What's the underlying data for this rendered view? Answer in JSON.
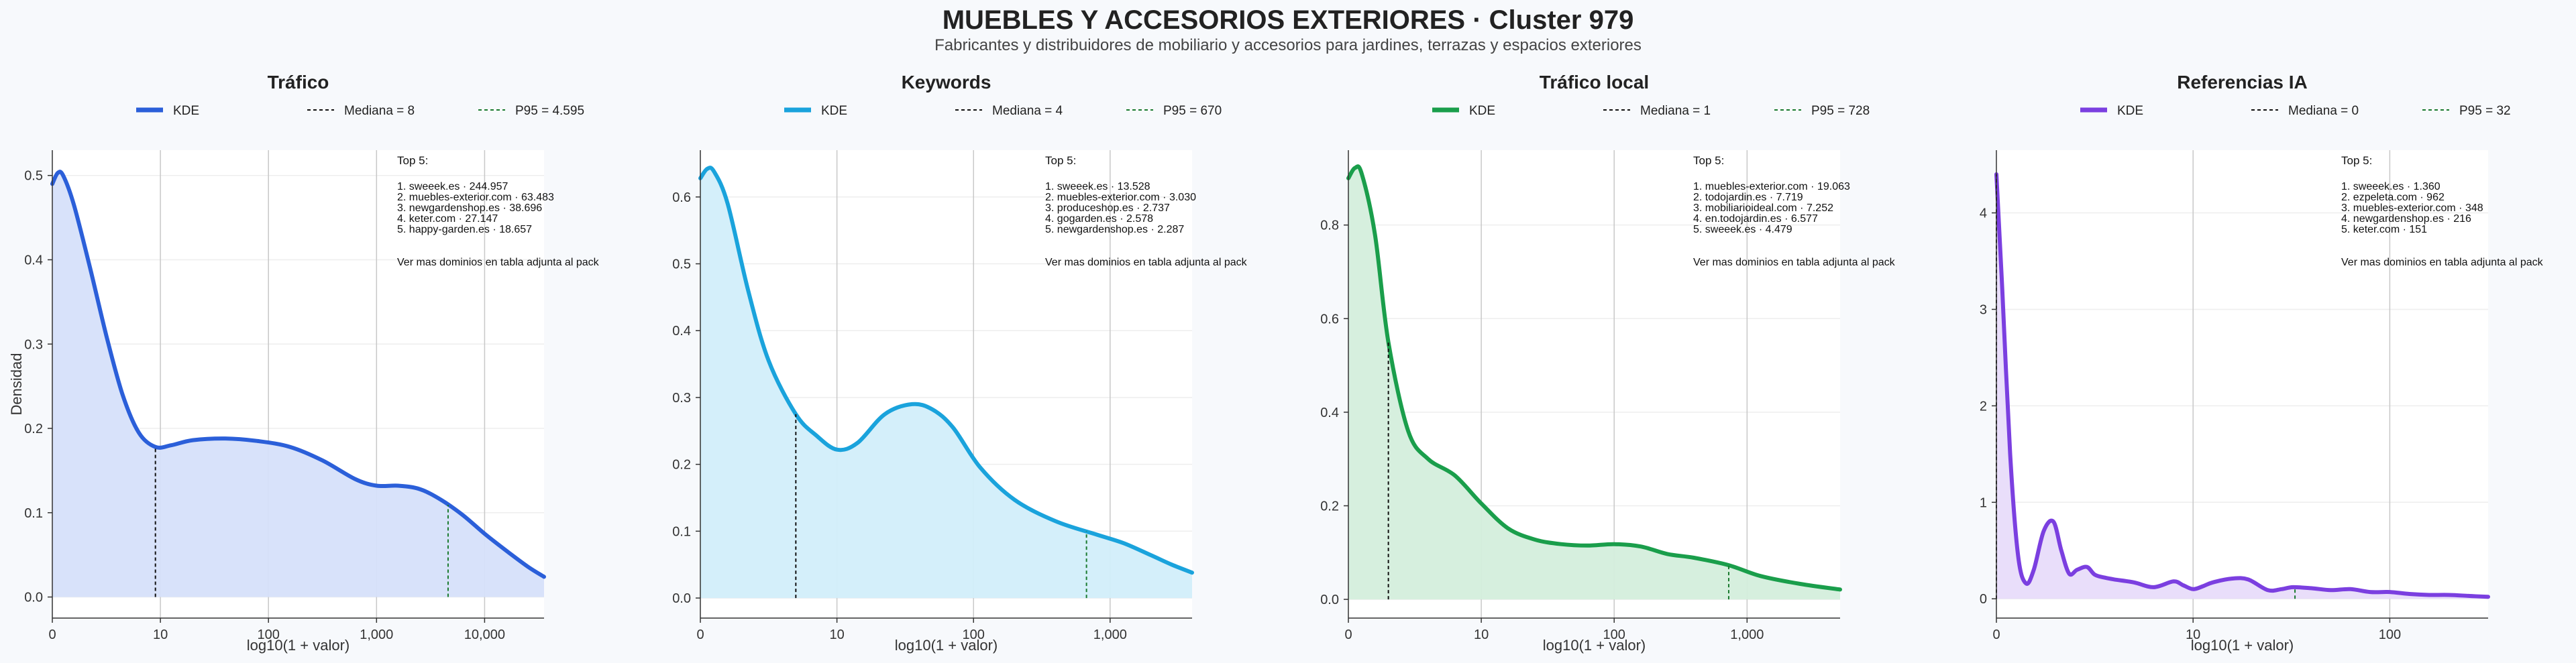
{
  "header": {
    "title": "MUEBLES Y ACCESORIOS EXTERIORES · Cluster 979",
    "subtitle": "Fabricantes y distribuidores de mobiliario y accesorios para jardines, terrazas y espacios exteriores"
  },
  "common": {
    "xlabel": "log10(1 + valor)",
    "ylabel": "Densidad",
    "legend_kde": "KDE",
    "top_heading": "Top 5:",
    "top_footer": "Ver mas dominios en tabla adjunta al pack"
  },
  "chart_data": [
    {
      "type": "area",
      "title": "Tráfico",
      "color": "#2b5fd9",
      "fill": "#d6e0fa",
      "xlim": [
        0,
        4.55
      ],
      "ylim": [
        -0.025,
        0.53
      ],
      "xticks": [
        0,
        1,
        2,
        3,
        4
      ],
      "xticklabels": [
        "0",
        "10",
        "100",
        "1,000",
        "10,000"
      ],
      "yticks": [
        0,
        0.1,
        0.2,
        0.3,
        0.4,
        0.5
      ],
      "yticklabels": [
        "0.0",
        "0.1",
        "0.2",
        "0.3",
        "0.4",
        "0.5"
      ],
      "x": [
        0,
        0.05,
        0.1,
        0.2,
        0.35,
        0.5,
        0.65,
        0.8,
        0.954,
        1.1,
        1.3,
        1.6,
        1.9,
        2.2,
        2.5,
        2.8,
        3.0,
        3.2,
        3.4,
        3.6,
        3.8,
        4.0,
        4.2,
        4.4,
        4.55
      ],
      "y": [
        0.49,
        0.503,
        0.5,
        0.465,
        0.39,
        0.31,
        0.24,
        0.195,
        0.178,
        0.18,
        0.186,
        0.188,
        0.185,
        0.178,
        0.162,
        0.14,
        0.132,
        0.132,
        0.128,
        0.115,
        0.097,
        0.075,
        0.055,
        0.036,
        0.024
      ],
      "median_label": "Mediana = 8",
      "median_x": 0.954,
      "p95_label": "P95 = 4.595",
      "p95_x": 3.662,
      "top5": [
        "1. sweeek.es · 244.957",
        "2. muebles-exterior.com · 63.483",
        "3. newgardenshop.es · 38.696",
        "4. keter.com · 27.147",
        "5. happy-garden.es · 18.657"
      ]
    },
    {
      "type": "area",
      "title": "Keywords",
      "color": "#1aa3dc",
      "fill": "#d2eefa",
      "xlim": [
        0,
        3.6
      ],
      "ylim": [
        -0.03,
        0.67
      ],
      "xticks": [
        0,
        1,
        2,
        3
      ],
      "xticklabels": [
        "0",
        "10",
        "100",
        "1,000"
      ],
      "yticks": [
        0,
        0.1,
        0.2,
        0.3,
        0.4,
        0.5,
        0.6
      ],
      "yticklabels": [
        "0.0",
        "0.1",
        "0.2",
        "0.3",
        "0.4",
        "0.5",
        "0.6"
      ],
      "x": [
        0,
        0.05,
        0.1,
        0.2,
        0.35,
        0.5,
        0.699,
        0.85,
        1.0,
        1.15,
        1.35,
        1.55,
        1.7,
        1.85,
        2.05,
        2.3,
        2.6,
        2.9,
        3.1,
        3.3,
        3.45,
        3.6
      ],
      "y": [
        0.628,
        0.642,
        0.638,
        0.59,
        0.46,
        0.355,
        0.275,
        0.243,
        0.222,
        0.232,
        0.275,
        0.29,
        0.282,
        0.255,
        0.195,
        0.147,
        0.115,
        0.095,
        0.082,
        0.064,
        0.05,
        0.038
      ],
      "median_label": "Mediana = 4",
      "median_x": 0.699,
      "p95_label": "P95 = 670",
      "p95_x": 2.827,
      "top5": [
        "1. sweeek.es · 13.528",
        "2. muebles-exterior.com · 3.030",
        "3. produceshop.es · 2.737",
        "4. gogarden.es · 2.578",
        "5. newgardenshop.es · 2.287"
      ]
    },
    {
      "type": "area",
      "title": "Tráfico local",
      "color": "#1a9e4b",
      "fill": "#d4eedc",
      "xlim": [
        0,
        3.7
      ],
      "ylim": [
        -0.04,
        0.96
      ],
      "xticks": [
        0,
        1,
        2,
        3
      ],
      "xticklabels": [
        "0",
        "10",
        "100",
        "1,000"
      ],
      "yticks": [
        0,
        0.2,
        0.4,
        0.6,
        0.8
      ],
      "yticklabels": [
        "0.0",
        "0.2",
        "0.4",
        "0.6",
        "0.8"
      ],
      "x": [
        0,
        0.05,
        0.1,
        0.2,
        0.301,
        0.45,
        0.6,
        0.8,
        1.0,
        1.2,
        1.4,
        1.6,
        1.8,
        2.0,
        2.2,
        2.4,
        2.6,
        2.862,
        3.1,
        3.4,
        3.7
      ],
      "y": [
        0.9,
        0.922,
        0.91,
        0.78,
        0.55,
        0.36,
        0.3,
        0.265,
        0.205,
        0.152,
        0.128,
        0.118,
        0.115,
        0.118,
        0.113,
        0.097,
        0.089,
        0.073,
        0.05,
        0.033,
        0.021
      ],
      "median_label": "Mediana = 1",
      "median_x": 0.301,
      "p95_label": "P95 = 728",
      "p95_x": 2.862,
      "top5": [
        "1. muebles-exterior.com · 19.063",
        "2. todojardin.es · 7.719",
        "3. mobiliarioideal.com · 7.252",
        "4. en.todojardin.es · 6.577",
        "5. sweeek.es · 4.479"
      ]
    },
    {
      "type": "area",
      "title": "Referencias IA",
      "color": "#7b3fe0",
      "fill": "#e8dcfa",
      "xlim": [
        0,
        2.5
      ],
      "ylim": [
        -0.2,
        4.65
      ],
      "xticks": [
        0,
        1,
        2
      ],
      "xticklabels": [
        "0",
        "10",
        "100"
      ],
      "yticks": [
        0,
        1,
        2,
        3,
        4
      ],
      "yticklabels": [
        "0",
        "1",
        "2",
        "3",
        "4"
      ],
      "x": [
        0,
        0.03,
        0.07,
        0.11,
        0.15,
        0.19,
        0.24,
        0.29,
        0.33,
        0.37,
        0.41,
        0.46,
        0.5,
        0.55,
        0.6,
        0.7,
        0.8,
        0.9,
        0.95,
        1.0,
        1.05,
        1.1,
        1.2,
        1.28,
        1.38,
        1.45,
        1.508,
        1.6,
        1.7,
        1.8,
        1.9,
        2.0,
        2.1,
        2.2,
        2.3,
        2.4,
        2.5
      ],
      "y": [
        4.4,
        3.2,
        1.5,
        0.45,
        0.16,
        0.3,
        0.7,
        0.8,
        0.5,
        0.26,
        0.3,
        0.33,
        0.25,
        0.22,
        0.2,
        0.17,
        0.12,
        0.18,
        0.14,
        0.1,
        0.13,
        0.17,
        0.21,
        0.2,
        0.09,
        0.1,
        0.12,
        0.11,
        0.09,
        0.1,
        0.07,
        0.07,
        0.05,
        0.04,
        0.04,
        0.03,
        0.02
      ],
      "median_label": "Mediana = 0",
      "median_x": 0.0,
      "p95_label": "P95 = 32",
      "p95_x": 1.518,
      "top5": [
        "1. sweeek.es · 1.360",
        "2. ezpeleta.com · 962",
        "3. muebles-exterior.com · 348",
        "4. newgardenshop.es · 216",
        "5. keter.com · 151"
      ]
    }
  ]
}
